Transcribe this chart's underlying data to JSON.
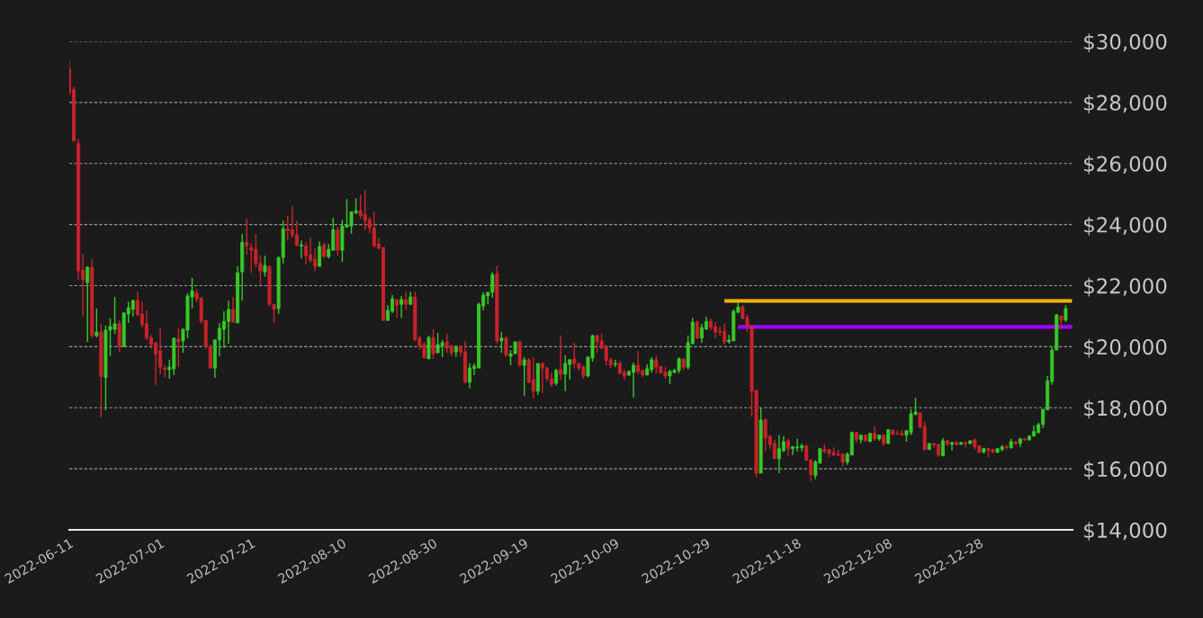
{
  "chart_data": {
    "type": "candlestick",
    "x": [
      "2022-06-11",
      "2022-06-12",
      "2022-06-13",
      "2022-06-14",
      "2022-06-15",
      "2022-06-16",
      "2022-06-17",
      "2022-06-18",
      "2022-06-19",
      "2022-06-20",
      "2022-06-21",
      "2022-06-22",
      "2022-06-23",
      "2022-06-24",
      "2022-06-25",
      "2022-06-26",
      "2022-06-27",
      "2022-06-28",
      "2022-06-29",
      "2022-06-30",
      "2022-07-01",
      "2022-07-02",
      "2022-07-03",
      "2022-07-04",
      "2022-07-05",
      "2022-07-06",
      "2022-07-07",
      "2022-07-08",
      "2022-07-09",
      "2022-07-10",
      "2022-07-11",
      "2022-07-12",
      "2022-07-13",
      "2022-07-14",
      "2022-07-15",
      "2022-07-16",
      "2022-07-17",
      "2022-07-18",
      "2022-07-19",
      "2022-07-20",
      "2022-07-21",
      "2022-07-22",
      "2022-07-23",
      "2022-07-24",
      "2022-07-25",
      "2022-07-26",
      "2022-07-27",
      "2022-07-28",
      "2022-07-29",
      "2022-07-30",
      "2022-07-31",
      "2022-08-01",
      "2022-08-02",
      "2022-08-03",
      "2022-08-04",
      "2022-08-05",
      "2022-08-06",
      "2022-08-07",
      "2022-08-08",
      "2022-08-09",
      "2022-08-10",
      "2022-08-11",
      "2022-08-12",
      "2022-08-13",
      "2022-08-14",
      "2022-08-15",
      "2022-08-16",
      "2022-08-17",
      "2022-08-18",
      "2022-08-19",
      "2022-08-20",
      "2022-08-21",
      "2022-08-22",
      "2022-08-23",
      "2022-08-24",
      "2022-08-25",
      "2022-08-26",
      "2022-08-27",
      "2022-08-28",
      "2022-08-29",
      "2022-08-30",
      "2022-08-31",
      "2022-09-01",
      "2022-09-02",
      "2022-09-03",
      "2022-09-04",
      "2022-09-05",
      "2022-09-06",
      "2022-09-07",
      "2022-09-08",
      "2022-09-09",
      "2022-09-10",
      "2022-09-11",
      "2022-09-12",
      "2022-09-13",
      "2022-09-14",
      "2022-09-15",
      "2022-09-16",
      "2022-09-17",
      "2022-09-18",
      "2022-09-19",
      "2022-09-20",
      "2022-09-21",
      "2022-09-22",
      "2022-09-23",
      "2022-09-24",
      "2022-09-25",
      "2022-09-26",
      "2022-09-27",
      "2022-09-28",
      "2022-09-29",
      "2022-09-30",
      "2022-10-01",
      "2022-10-02",
      "2022-10-03",
      "2022-10-04",
      "2022-10-05",
      "2022-10-06",
      "2022-10-07",
      "2022-10-08",
      "2022-10-09",
      "2022-10-10",
      "2022-10-11",
      "2022-10-12",
      "2022-10-13",
      "2022-10-14",
      "2022-10-15",
      "2022-10-16",
      "2022-10-17",
      "2022-10-18",
      "2022-10-19",
      "2022-10-20",
      "2022-10-21",
      "2022-10-22",
      "2022-10-23",
      "2022-10-24",
      "2022-10-25",
      "2022-10-26",
      "2022-10-27",
      "2022-10-28",
      "2022-10-29",
      "2022-10-30",
      "2022-10-31",
      "2022-11-01",
      "2022-11-02",
      "2022-11-03",
      "2022-11-04",
      "2022-11-05",
      "2022-11-06",
      "2022-11-07",
      "2022-11-08",
      "2022-11-09",
      "2022-11-10",
      "2022-11-11",
      "2022-11-12",
      "2022-11-13",
      "2022-11-14",
      "2022-11-15",
      "2022-11-16",
      "2022-11-17",
      "2022-11-18",
      "2022-11-19",
      "2022-11-20",
      "2022-11-21",
      "2022-11-22",
      "2022-11-23",
      "2022-11-24",
      "2022-11-25",
      "2022-11-26",
      "2022-11-27",
      "2022-11-28",
      "2022-11-29",
      "2022-11-30",
      "2022-12-01",
      "2022-12-02",
      "2022-12-03",
      "2022-12-04",
      "2022-12-05",
      "2022-12-06",
      "2022-12-07",
      "2022-12-08",
      "2022-12-09",
      "2022-12-10",
      "2022-12-11",
      "2022-12-12",
      "2022-12-13",
      "2022-12-14",
      "2022-12-15",
      "2022-12-16",
      "2022-12-17",
      "2022-12-18",
      "2022-12-19",
      "2022-12-20",
      "2022-12-21",
      "2022-12-22",
      "2022-12-23",
      "2022-12-24",
      "2022-12-25",
      "2022-12-26",
      "2022-12-27",
      "2022-12-28",
      "2022-12-29",
      "2022-12-30",
      "2022-12-31",
      "2023-01-01",
      "2023-01-02",
      "2023-01-03",
      "2023-01-04",
      "2023-01-05",
      "2023-01-06",
      "2023-01-07",
      "2023-01-08",
      "2023-01-09",
      "2023-01-10",
      "2023-01-11",
      "2023-01-12",
      "2023-01-13",
      "2023-01-14",
      "2023-01-15",
      "2023-01-16"
    ],
    "ohlc": [
      [
        29100,
        29390,
        28220,
        28330
      ],
      [
        28420,
        28510,
        26700,
        26750
      ],
      [
        26660,
        26800,
        22190,
        22480
      ],
      [
        22510,
        23040,
        20990,
        22200
      ],
      [
        22100,
        22630,
        20160,
        22600
      ],
      [
        22600,
        22860,
        20290,
        20360
      ],
      [
        20360,
        21250,
        20300,
        20480
      ],
      [
        20480,
        20750,
        17690,
        19020
      ],
      [
        18990,
        20690,
        17910,
        20540
      ],
      [
        20540,
        20920,
        19690,
        20660
      ],
      [
        20570,
        21630,
        20420,
        20750
      ],
      [
        20750,
        20860,
        19830,
        20000
      ],
      [
        20000,
        21130,
        20000,
        21100
      ],
      [
        21070,
        21480,
        20780,
        21280
      ],
      [
        21220,
        21540,
        20980,
        21510
      ],
      [
        21510,
        21800,
        21010,
        21040
      ],
      [
        21070,
        21480,
        20630,
        20720
      ],
      [
        20750,
        21190,
        20220,
        20280
      ],
      [
        20300,
        20390,
        19920,
        20070
      ],
      [
        20130,
        20160,
        18750,
        19750
      ],
      [
        19860,
        20600,
        19100,
        19330
      ],
      [
        19300,
        19390,
        19010,
        19250
      ],
      [
        19250,
        19570,
        18950,
        19330
      ],
      [
        19270,
        20280,
        19070,
        20280
      ],
      [
        20250,
        20630,
        19330,
        20160
      ],
      [
        20190,
        20600,
        19800,
        20570
      ],
      [
        20540,
        21750,
        20280,
        21660
      ],
      [
        21630,
        22250,
        21250,
        21830
      ],
      [
        21750,
        21890,
        21450,
        21570
      ],
      [
        21600,
        21600,
        20750,
        20830
      ],
      [
        20860,
        20860,
        19920,
        20010
      ],
      [
        20010,
        20070,
        19300,
        19300
      ],
      [
        19300,
        20250,
        18980,
        20220
      ],
      [
        20220,
        20780,
        19690,
        20600
      ],
      [
        20570,
        21160,
        19950,
        20830
      ],
      [
        20830,
        21510,
        20100,
        21220
      ],
      [
        21220,
        21630,
        20800,
        20800
      ],
      [
        20780,
        22630,
        20780,
        22420
      ],
      [
        22450,
        23690,
        21510,
        23420
      ],
      [
        23420,
        24190,
        23010,
        23300
      ],
      [
        23250,
        23390,
        22420,
        23160
      ],
      [
        23190,
        23690,
        22600,
        22720
      ],
      [
        22720,
        22980,
        22010,
        22480
      ],
      [
        22450,
        22980,
        22300,
        22660
      ],
      [
        22630,
        22660,
        21330,
        21390
      ],
      [
        21390,
        21390,
        20780,
        21220
      ],
      [
        21250,
        22950,
        21070,
        22920
      ],
      [
        22920,
        24130,
        22720,
        23860
      ],
      [
        23860,
        24280,
        23480,
        23800
      ],
      [
        23830,
        24600,
        23570,
        23660
      ],
      [
        23660,
        24130,
        23280,
        23330
      ],
      [
        23300,
        23480,
        22890,
        23330
      ],
      [
        23300,
        23420,
        22690,
        22980
      ],
      [
        23010,
        23570,
        22750,
        22830
      ],
      [
        22860,
        23220,
        22480,
        22630
      ],
      [
        22630,
        23450,
        22630,
        23280
      ],
      [
        23330,
        23400,
        22900,
        22960
      ],
      [
        22950,
        23360,
        22890,
        23190
      ],
      [
        23160,
        24220,
        23160,
        23830
      ],
      [
        23830,
        23920,
        22980,
        23160
      ],
      [
        23160,
        24160,
        22780,
        23950
      ],
      [
        23920,
        24830,
        23900,
        23990
      ],
      [
        23950,
        24420,
        23700,
        24420
      ],
      [
        24390,
        24860,
        24330,
        24450
      ],
      [
        24450,
        24980,
        24190,
        24300
      ],
      [
        24330,
        25130,
        23830,
        24130
      ],
      [
        24160,
        24250,
        23720,
        23890
      ],
      [
        23890,
        24420,
        23250,
        23300
      ],
      [
        23360,
        23570,
        23190,
        23220
      ],
      [
        23250,
        23250,
        20860,
        20860
      ],
      [
        20860,
        21360,
        20860,
        21190
      ],
      [
        21160,
        21690,
        21100,
        21570
      ],
      [
        21540,
        21540,
        20950,
        21360
      ],
      [
        21390,
        21660,
        20950,
        21540
      ],
      [
        21540,
        21800,
        21190,
        21390
      ],
      [
        21390,
        21800,
        21360,
        21630
      ],
      [
        21630,
        21800,
        20190,
        20220
      ],
      [
        20280,
        20360,
        19890,
        20040
      ],
      [
        20070,
        20160,
        19630,
        19630
      ],
      [
        19600,
        20360,
        19600,
        20300
      ],
      [
        20300,
        20570,
        19600,
        19770
      ],
      [
        19800,
        20450,
        19800,
        20070
      ],
      [
        20040,
        20220,
        19660,
        20130
      ],
      [
        20160,
        20420,
        19800,
        19950
      ],
      [
        20010,
        20070,
        19690,
        19800
      ],
      [
        19830,
        20010,
        19660,
        20010
      ],
      [
        20010,
        20040,
        19670,
        19830
      ],
      [
        19830,
        20190,
        18800,
        18830
      ],
      [
        18830,
        19450,
        18630,
        19300
      ],
      [
        19280,
        19450,
        19070,
        19360
      ],
      [
        19300,
        21450,
        19300,
        21390
      ],
      [
        21330,
        21780,
        21190,
        21690
      ],
      [
        21660,
        21780,
        21390,
        21780
      ],
      [
        21780,
        22450,
        21600,
        22360
      ],
      [
        22390,
        22660,
        20100,
        20190
      ],
      [
        20190,
        20480,
        19800,
        20280
      ],
      [
        20280,
        20330,
        19660,
        19720
      ],
      [
        19690,
        19890,
        19390,
        19770
      ],
      [
        19770,
        20160,
        19770,
        20160
      ],
      [
        20160,
        20200,
        19350,
        19390
      ],
      [
        19390,
        19660,
        18390,
        19570
      ],
      [
        19570,
        19630,
        18800,
        18830
      ],
      [
        18920,
        19660,
        18300,
        18540
      ],
      [
        18540,
        19450,
        18420,
        19450
      ],
      [
        19450,
        19480,
        18480,
        19300
      ],
      [
        19300,
        19330,
        18860,
        18950
      ],
      [
        18950,
        19160,
        18690,
        18770
      ],
      [
        18800,
        19280,
        18720,
        19220
      ],
      [
        19250,
        20360,
        18920,
        19100
      ],
      [
        19100,
        19720,
        18540,
        19450
      ],
      [
        19420,
        19600,
        18920,
        19570
      ],
      [
        19600,
        20130,
        19280,
        19450
      ],
      [
        19450,
        19450,
        19220,
        19300
      ],
      [
        19330,
        19390,
        18950,
        19040
      ],
      [
        19040,
        19690,
        19000,
        19660
      ],
      [
        19630,
        20390,
        19510,
        20360
      ],
      [
        20360,
        20390,
        19800,
        20160
      ],
      [
        20190,
        20420,
        19920,
        19950
      ],
      [
        20010,
        20070,
        19390,
        19540
      ],
      [
        19570,
        19630,
        19300,
        19390
      ],
      [
        19420,
        19570,
        19330,
        19450
      ],
      [
        19450,
        19540,
        19100,
        19130
      ],
      [
        19160,
        19250,
        18920,
        19040
      ],
      [
        19070,
        19220,
        19040,
        19190
      ],
      [
        19160,
        19480,
        18330,
        19390
      ],
      [
        19390,
        19860,
        19100,
        19190
      ],
      [
        19220,
        19250,
        19010,
        19070
      ],
      [
        19070,
        19420,
        19070,
        19280
      ],
      [
        19250,
        19660,
        19160,
        19570
      ],
      [
        19570,
        19690,
        19130,
        19330
      ],
      [
        19360,
        19360,
        19130,
        19130
      ],
      [
        19160,
        19330,
        18950,
        19040
      ],
      [
        19040,
        19250,
        18780,
        19190
      ],
      [
        19160,
        19280,
        19130,
        19220
      ],
      [
        19220,
        19660,
        19130,
        19600
      ],
      [
        19600,
        19600,
        19220,
        19330
      ],
      [
        19330,
        20360,
        19250,
        20130
      ],
      [
        20100,
        20950,
        20070,
        20800
      ],
      [
        20800,
        20860,
        20250,
        20280
      ],
      [
        20280,
        20750,
        20120,
        20630
      ],
      [
        20570,
        20980,
        20570,
        20830
      ],
      [
        20830,
        20920,
        20540,
        20630
      ],
      [
        20660,
        20800,
        20280,
        20480
      ],
      [
        20510,
        20660,
        20360,
        20480
      ],
      [
        20510,
        20750,
        20070,
        20160
      ],
      [
        20160,
        20390,
        20100,
        20220
      ],
      [
        20190,
        21220,
        20190,
        21160
      ],
      [
        21130,
        21450,
        21100,
        21300
      ],
      [
        21300,
        21360,
        20920,
        20920
      ],
      [
        20950,
        21070,
        20480,
        20690
      ],
      [
        20690,
        20690,
        17720,
        18540
      ],
      [
        18570,
        18570,
        15720,
        15860
      ],
      [
        15860,
        17980,
        15860,
        17600
      ],
      [
        17600,
        17660,
        16570,
        17010
      ],
      [
        17070,
        17100,
        16660,
        16800
      ],
      [
        16830,
        16950,
        16330,
        16330
      ],
      [
        16330,
        17100,
        15860,
        16660
      ],
      [
        16600,
        17070,
        16540,
        16890
      ],
      [
        16920,
        16980,
        16420,
        16660
      ],
      [
        16660,
        16750,
        16450,
        16720
      ],
      [
        16690,
        16980,
        16570,
        16720
      ],
      [
        16690,
        16830,
        16570,
        16750
      ],
      [
        16750,
        16780,
        16250,
        16280
      ],
      [
        16300,
        16300,
        15600,
        15800
      ],
      [
        15780,
        16280,
        15660,
        16220
      ],
      [
        16190,
        16660,
        16160,
        16660
      ],
      [
        16630,
        16800,
        16510,
        16570
      ],
      [
        16630,
        16630,
        16390,
        16510
      ],
      [
        16540,
        16690,
        16420,
        16450
      ],
      [
        16480,
        16630,
        16420,
        16450
      ],
      [
        16480,
        16480,
        16070,
        16220
      ],
      [
        16220,
        16540,
        16130,
        16480
      ],
      [
        16450,
        17220,
        16450,
        17190
      ],
      [
        17190,
        17190,
        16860,
        16950
      ],
      [
        16950,
        17100,
        16830,
        17100
      ],
      [
        17100,
        17130,
        16890,
        16920
      ],
      [
        16890,
        17160,
        16890,
        17160
      ],
      [
        17160,
        17390,
        16920,
        16980
      ],
      [
        16980,
        17100,
        16920,
        17100
      ],
      [
        17100,
        17100,
        16750,
        16830
      ],
      [
        16830,
        17300,
        16800,
        17280
      ],
      [
        17250,
        17300,
        17100,
        17130
      ],
      [
        17160,
        17250,
        17130,
        17130
      ],
      [
        17160,
        17280,
        17100,
        17100
      ],
      [
        17100,
        17250,
        16890,
        17250
      ],
      [
        17190,
        17950,
        17100,
        17800
      ],
      [
        17780,
        18330,
        17750,
        17860
      ],
      [
        17830,
        17860,
        17330,
        17360
      ],
      [
        17390,
        17540,
        16600,
        16630
      ],
      [
        16630,
        16830,
        16630,
        16830
      ],
      [
        16830,
        16830,
        16690,
        16780
      ],
      [
        16800,
        16830,
        16390,
        16450
      ],
      [
        16420,
        17010,
        16420,
        16920
      ],
      [
        16920,
        16950,
        16750,
        16800
      ],
      [
        16800,
        16890,
        16600,
        16860
      ],
      [
        16860,
        16920,
        16780,
        16780
      ],
      [
        16800,
        16890,
        16800,
        16860
      ],
      [
        16860,
        16890,
        16690,
        16830
      ],
      [
        16830,
        16920,
        16800,
        16920
      ],
      [
        16950,
        16980,
        16630,
        16720
      ],
      [
        16750,
        16780,
        16510,
        16540
      ],
      [
        16540,
        16690,
        16510,
        16660
      ],
      [
        16660,
        16660,
        16390,
        16600
      ],
      [
        16630,
        16660,
        16510,
        16540
      ],
      [
        16540,
        16660,
        16510,
        16660
      ],
      [
        16630,
        16780,
        16570,
        16720
      ],
      [
        16720,
        16780,
        16630,
        16690
      ],
      [
        16690,
        16980,
        16660,
        16890
      ],
      [
        16890,
        16890,
        16780,
        16830
      ],
      [
        16830,
        17010,
        16720,
        16980
      ],
      [
        16980,
        17010,
        16920,
        16950
      ],
      [
        16950,
        17100,
        16920,
        17070
      ],
      [
        17070,
        17420,
        17070,
        17220
      ],
      [
        17190,
        17510,
        17160,
        17450
      ],
      [
        17450,
        17950,
        17330,
        17950
      ],
      [
        17930,
        19040,
        17930,
        18880
      ],
      [
        18860,
        19980,
        18750,
        19890
      ],
      [
        19890,
        21070,
        19890,
        21040
      ],
      [
        21010,
        21010,
        20600,
        20870
      ],
      [
        20870,
        21360,
        20810,
        21250
      ]
    ],
    "colors": [
      "#c9232b",
      "#c9232b",
      "#c9232b",
      "#c9232b",
      "#38c927",
      "#c9232b",
      "#38c927",
      "#c9232b",
      "#38c927",
      "#38c927",
      "#38c927",
      "#c9232b",
      "#38c927",
      "#38c927",
      "#38c927",
      "#c9232b",
      "#c9232b",
      "#c9232b",
      "#c9232b",
      "#c9232b",
      "#c9232b",
      "#c9232b",
      "#38c927",
      "#38c927",
      "#c9232b",
      "#38c927",
      "#38c927",
      "#38c927",
      "#c9232b",
      "#c9232b",
      "#c9232b",
      "#c9232b",
      "#38c927",
      "#38c927",
      "#38c927",
      "#38c927",
      "#c9232b",
      "#38c927",
      "#38c927",
      "#c9232b",
      "#c9232b",
      "#c9232b",
      "#c9232b",
      "#38c927",
      "#c9232b",
      "#c9232b",
      "#38c927",
      "#38c927",
      "#c9232b",
      "#c9232b",
      "#c9232b",
      "#38c927",
      "#c9232b",
      "#c9232b",
      "#c9232b",
      "#38c927",
      "#c9232b",
      "#38c927",
      "#38c927",
      "#c9232b",
      "#38c927",
      "#38c927",
      "#38c927",
      "#38c927",
      "#c9232b",
      "#c9232b",
      "#c9232b",
      "#c9232b",
      "#c9232b",
      "#c9232b",
      "#38c927",
      "#38c927",
      "#c9232b",
      "#38c927",
      "#c9232b",
      "#38c927",
      "#c9232b",
      "#c9232b",
      "#c9232b",
      "#38c927",
      "#c9232b",
      "#38c927",
      "#38c927",
      "#c9232b",
      "#c9232b",
      "#38c927",
      "#c9232b",
      "#c9232b",
      "#38c927",
      "#38c927",
      "#38c927",
      "#38c927",
      "#38c927",
      "#38c927",
      "#c9232b",
      "#38c927",
      "#c9232b",
      "#38c927",
      "#38c927",
      "#c9232b",
      "#38c927",
      "#c9232b",
      "#c9232b",
      "#38c927",
      "#c9232b",
      "#c9232b",
      "#c9232b",
      "#38c927",
      "#c9232b",
      "#38c927",
      "#38c927",
      "#c9232b",
      "#c9232b",
      "#c9232b",
      "#38c927",
      "#38c927",
      "#c9232b",
      "#c9232b",
      "#c9232b",
      "#c9232b",
      "#38c927",
      "#c9232b",
      "#c9232b",
      "#38c927",
      "#38c927",
      "#c9232b",
      "#c9232b",
      "#38c927",
      "#38c927",
      "#c9232b",
      "#c9232b",
      "#c9232b",
      "#38c927",
      "#38c927",
      "#38c927",
      "#c9232b",
      "#38c927",
      "#38c927",
      "#c9232b",
      "#38c927",
      "#38c927",
      "#c9232b",
      "#c9232b",
      "#c9232b",
      "#c9232b",
      "#38c927",
      "#38c927",
      "#38c927",
      "#c9232b",
      "#c9232b",
      "#c9232b",
      "#c9232b",
      "#38c927",
      "#c9232b",
      "#c9232b",
      "#c9232b",
      "#38c927",
      "#38c927",
      "#c9232b",
      "#38c927",
      "#38c927",
      "#38c927",
      "#c9232b",
      "#c9232b",
      "#38c927",
      "#38c927",
      "#c9232b",
      "#c9232b",
      "#c9232b",
      "#c9232b",
      "#c9232b",
      "#38c927",
      "#38c927",
      "#c9232b",
      "#38c927",
      "#c9232b",
      "#38c927",
      "#c9232b",
      "#38c927",
      "#c9232b",
      "#38c927",
      "#c9232b",
      "#c9232b",
      "#c9232b",
      "#38c927",
      "#38c927",
      "#38c927",
      "#c9232b",
      "#c9232b",
      "#38c927",
      "#c9232b",
      "#c9232b",
      "#38c927",
      "#c9232b",
      "#38c927",
      "#c9232b",
      "#38c927",
      "#c9232b",
      "#38c927",
      "#c9232b",
      "#c9232b",
      "#38c927",
      "#c9232b",
      "#c9232b",
      "#38c927",
      "#38c927",
      "#c9232b",
      "#38c927",
      "#c9232b",
      "#38c927",
      "#c9232b",
      "#38c927",
      "#38c927",
      "#38c927",
      "#38c927",
      "#38c927",
      "#38c927",
      "#38c927",
      "#c9232b",
      "#38c927"
    ],
    "series": [
      {
        "type": "line",
        "color": "#ffb10a",
        "x": [
          "2022-11-02",
          "2023-01-17T12:00"
        ],
        "values": [
          21500,
          21500
        ]
      },
      {
        "type": "line",
        "color": "#a000ff",
        "x": [
          "2022-11-05",
          "2023-01-17T12:00"
        ],
        "values": [
          20650,
          20650
        ]
      }
    ],
    "xlim": [
      "2022-06-11",
      "2023-01-17T12:00"
    ],
    "xticks": [
      "2022-06-11",
      "2022-07-01",
      "2022-07-21",
      "2022-08-10",
      "2022-08-30",
      "2022-09-19",
      "2022-10-09",
      "2022-10-29",
      "2022-11-18",
      "2022-12-08",
      "2022-12-28"
    ],
    "ylim": [
      14000,
      30000
    ],
    "yticks": [
      {
        "value": 14000,
        "label": "$14,000"
      },
      {
        "value": 16000,
        "label": "$16,000"
      },
      {
        "value": 18000,
        "label": "$18,000"
      },
      {
        "value": 20000,
        "label": "$20,000"
      },
      {
        "value": 22000,
        "label": "$22,000"
      },
      {
        "value": 24000,
        "label": "$24,000"
      },
      {
        "value": 26000,
        "label": "$26,000"
      },
      {
        "value": 28000,
        "label": "$28,000"
      },
      {
        "value": 30000,
        "label": "$30,000"
      }
    ],
    "grid": "y"
  }
}
